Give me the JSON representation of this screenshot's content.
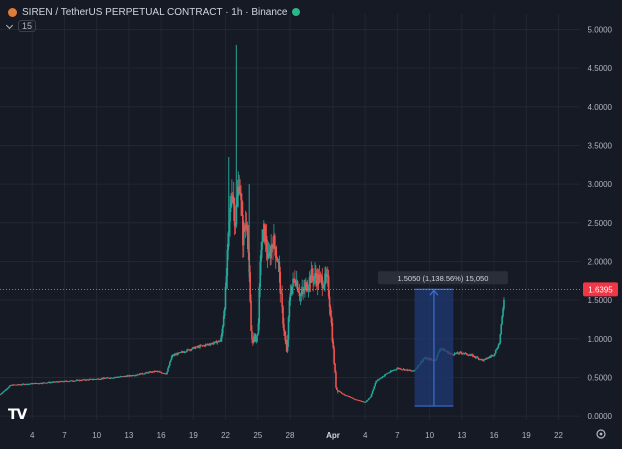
{
  "header": {
    "symbol_icon": "siren-coin-icon",
    "title": "SIREN / TetherUS PERPETUAL CONTRACT · 1h · Binance",
    "status_color": "#2bb58a"
  },
  "indicator": {
    "badge": "15"
  },
  "logo": "TV",
  "settings_icon": "gear-icon",
  "colors": {
    "background": "#161a25",
    "up": "#26a69a",
    "down": "#ef5350",
    "grid": "#222633",
    "measure_fill": "#1f3a73",
    "measure_line": "#3b6fd8",
    "price_tag": "#f23645"
  },
  "chart_data": {
    "type": "candlestick",
    "x_axis": {
      "labels": [
        {
          "text": "4",
          "day": 4
        },
        {
          "text": "7",
          "day": 7
        },
        {
          "text": "10",
          "day": 10
        },
        {
          "text": "13",
          "day": 13
        },
        {
          "text": "16",
          "day": 16
        },
        {
          "text": "19",
          "day": 19
        },
        {
          "text": "22",
          "day": 22
        },
        {
          "text": "25",
          "day": 25
        },
        {
          "text": "28",
          "day": 28
        },
        {
          "text": "Apr",
          "day": 32,
          "strong": true
        },
        {
          "text": "4",
          "day": 35
        },
        {
          "text": "7",
          "day": 38
        },
        {
          "text": "10",
          "day": 41
        },
        {
          "text": "13",
          "day": 44
        },
        {
          "text": "16",
          "day": 47
        },
        {
          "text": "19",
          "day": 50
        },
        {
          "text": "22",
          "day": 53
        }
      ],
      "range": [
        1,
        55
      ]
    },
    "y_axis": {
      "ticks": [
        "0.0000",
        "0.5000",
        "1.0000",
        "1.5000",
        "2.0000",
        "2.5000",
        "3.0000",
        "3.5000",
        "4.0000",
        "4.5000",
        "5.0000"
      ],
      "range": [
        -0.05,
        5.2
      ]
    },
    "last_price": "1.6395",
    "last_price_value": 1.6395,
    "path": [
      [
        1,
        0.28
      ],
      [
        2,
        0.4
      ],
      [
        4,
        0.42
      ],
      [
        7,
        0.45
      ],
      [
        10,
        0.48
      ],
      [
        13,
        0.52
      ],
      [
        15.5,
        0.58
      ],
      [
        16.5,
        0.55
      ],
      [
        17,
        0.78
      ],
      [
        19,
        0.88
      ],
      [
        21,
        0.95
      ],
      [
        21.6,
        0.98
      ],
      [
        22.0,
        1.6
      ],
      [
        22.3,
        2.4
      ],
      [
        22.6,
        3.0
      ],
      [
        22.9,
        2.5
      ],
      [
        23.3,
        3.1
      ],
      [
        23.6,
        2.3
      ],
      [
        24.0,
        2.6
      ],
      [
        24.4,
        1.0
      ],
      [
        24.7,
        1.0
      ],
      [
        25.0,
        1.05
      ],
      [
        25.3,
        2.2
      ],
      [
        25.6,
        2.4
      ],
      [
        26.0,
        2.0
      ],
      [
        26.4,
        2.3
      ],
      [
        26.9,
        2.0
      ],
      [
        27.3,
        1.3
      ],
      [
        27.7,
        0.8
      ],
      [
        28.0,
        1.6
      ],
      [
        28.5,
        1.8
      ],
      [
        29,
        1.55
      ],
      [
        30,
        1.82
      ],
      [
        31,
        1.75
      ],
      [
        31.5,
        1.75
      ],
      [
        31.8,
        1.3
      ],
      [
        32.0,
        0.9
      ],
      [
        32.3,
        0.35
      ],
      [
        33,
        0.28
      ],
      [
        34,
        0.22
      ],
      [
        35,
        0.18
      ],
      [
        35.5,
        0.25
      ],
      [
        36,
        0.45
      ],
      [
        37,
        0.55
      ],
      [
        38,
        0.62
      ],
      [
        39.5,
        0.58
      ],
      [
        40.5,
        0.75
      ],
      [
        41.5,
        0.72
      ],
      [
        42,
        0.88
      ],
      [
        43,
        0.8
      ],
      [
        44,
        0.82
      ],
      [
        45,
        0.78
      ],
      [
        46,
        0.72
      ],
      [
        47,
        0.8
      ],
      [
        47.5,
        0.95
      ],
      [
        47.8,
        1.35
      ],
      [
        48.0,
        1.6395
      ]
    ],
    "spikes": [
      {
        "day": 23.0,
        "high": 4.8
      },
      {
        "day": 22.3,
        "high": 3.35
      },
      {
        "day": 24.2,
        "high": 3.0
      }
    ],
    "measure": {
      "label": "1.5050 (1,138.56%) 15,050",
      "day_start": 39.6,
      "day_end": 43.2,
      "from_value": 0.13,
      "to_value": 1.64
    }
  }
}
